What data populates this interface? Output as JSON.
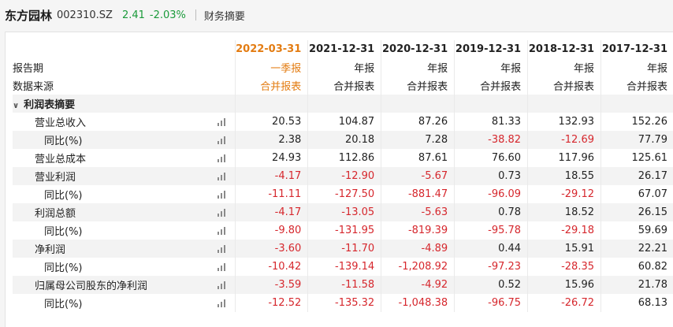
{
  "header": {
    "company": "东方园林",
    "code": "002310.SZ",
    "price": "2.41",
    "change": "-2.03%",
    "page_title": "财务摘要"
  },
  "table": {
    "row_labels": {
      "period": "报告期",
      "source": "数据来源"
    },
    "columns": [
      {
        "date": "2022-03-31",
        "type": "一季报",
        "source": "合并报表"
      },
      {
        "date": "2021-12-31",
        "type": "年报",
        "source": "合并报表"
      },
      {
        "date": "2020-12-31",
        "type": "年报",
        "source": "合并报表"
      },
      {
        "date": "2019-12-31",
        "type": "年报",
        "source": "合并报表"
      },
      {
        "date": "2018-12-31",
        "type": "年报",
        "source": "合并报表"
      },
      {
        "date": "2017-12-31",
        "type": "年报",
        "source": "合并报表"
      }
    ],
    "section": "利润表摘要",
    "rows": [
      {
        "label": "营业总收入",
        "values": [
          "20.53",
          "104.87",
          "87.26",
          "81.33",
          "132.93",
          "152.26"
        ]
      },
      {
        "label": "同比(%)",
        "values": [
          "2.38",
          "20.18",
          "7.28",
          "-38.82",
          "-12.69",
          "77.79"
        ]
      },
      {
        "label": "营业总成本",
        "values": [
          "24.93",
          "112.86",
          "87.61",
          "76.60",
          "117.96",
          "125.61"
        ]
      },
      {
        "label": "营业利润",
        "values": [
          "-4.17",
          "-12.90",
          "-5.67",
          "0.73",
          "18.55",
          "26.17"
        ]
      },
      {
        "label": "同比(%)",
        "values": [
          "-11.11",
          "-127.50",
          "-881.47",
          "-96.09",
          "-29.12",
          "67.07"
        ]
      },
      {
        "label": "利润总额",
        "values": [
          "-4.17",
          "-13.05",
          "-5.63",
          "0.78",
          "18.52",
          "26.15"
        ]
      },
      {
        "label": "同比(%)",
        "values": [
          "-9.80",
          "-131.95",
          "-819.39",
          "-95.78",
          "-29.18",
          "59.69"
        ]
      },
      {
        "label": "净利润",
        "values": [
          "-3.60",
          "-11.70",
          "-4.89",
          "0.44",
          "15.91",
          "22.21"
        ]
      },
      {
        "label": "同比(%)",
        "values": [
          "-10.42",
          "-139.14",
          "-1,208.92",
          "-97.23",
          "-28.35",
          "60.82"
        ]
      },
      {
        "label": "归属母公司股东的净利润",
        "values": [
          "-3.59",
          "-11.58",
          "-4.92",
          "0.52",
          "15.96",
          "21.78"
        ]
      },
      {
        "label": "同比(%)",
        "values": [
          "-12.52",
          "-135.32",
          "-1,048.38",
          "-96.75",
          "-26.72",
          "68.13"
        ]
      }
    ]
  }
}
